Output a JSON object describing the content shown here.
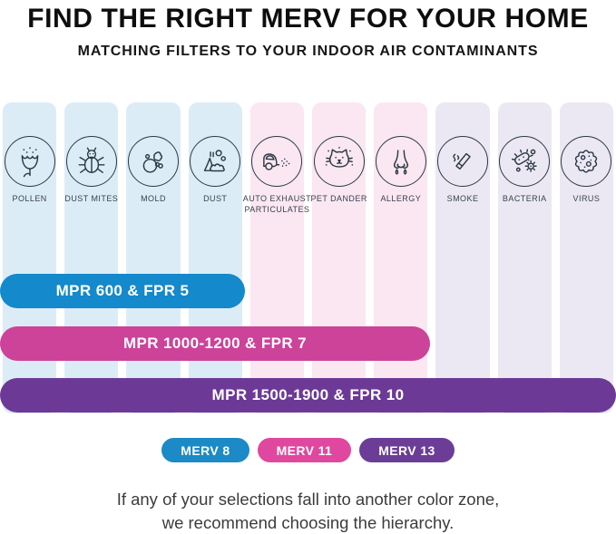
{
  "title": "FIND THE RIGHT MERV FOR YOUR HOME",
  "subtitle": "MATCHING FILTERS TO YOUR INDOOR AIR CONTAMINANTS",
  "columns": [
    {
      "label": "POLLEN",
      "icon": "pollen-icon",
      "group": "blue"
    },
    {
      "label": "DUST MITES",
      "icon": "dust-mites-icon",
      "group": "blue"
    },
    {
      "label": "MOLD",
      "icon": "mold-icon",
      "group": "blue"
    },
    {
      "label": "DUST",
      "icon": "dust-icon",
      "group": "blue"
    },
    {
      "label": "AUTO EXHAUST PARTICULATES",
      "icon": "auto-exhaust-icon",
      "group": "pink"
    },
    {
      "label": "PET DANDER",
      "icon": "pet-dander-icon",
      "group": "pink"
    },
    {
      "label": "ALLERGY",
      "icon": "allergy-icon",
      "group": "pink"
    },
    {
      "label": "SMOKE",
      "icon": "smoke-icon",
      "group": "purple"
    },
    {
      "label": "BACTERIA",
      "icon": "bacteria-icon",
      "group": "purple"
    },
    {
      "label": "VIRUS",
      "icon": "virus-icon",
      "group": "purple"
    }
  ],
  "bars": [
    {
      "label": "MPR 600 & FPR 5",
      "color": "#1489cb",
      "span_columns": 4
    },
    {
      "label": "MPR 1000-1200 & FPR 7",
      "color": "#cc4399",
      "span_columns": 7
    },
    {
      "label": "MPR 1500-1900 & FPR 10",
      "color": "#6c3a96",
      "span_columns": 10
    }
  ],
  "legend": [
    {
      "label": "MERV 8",
      "color": "#1b8ac6"
    },
    {
      "label": "MERV 11",
      "color": "#e0479e"
    },
    {
      "label": "MERV 13",
      "color": "#6b3d97"
    }
  ],
  "footer": {
    "line1": "If any of your selections fall into another color zone,",
    "line2": "we recommend choosing the hierarchy."
  },
  "colors": {
    "column_blue": "#dcecf7",
    "column_pink": "#fae7f1",
    "column_purple": "#ebe8f4",
    "icon_stroke": "#2b3945"
  }
}
